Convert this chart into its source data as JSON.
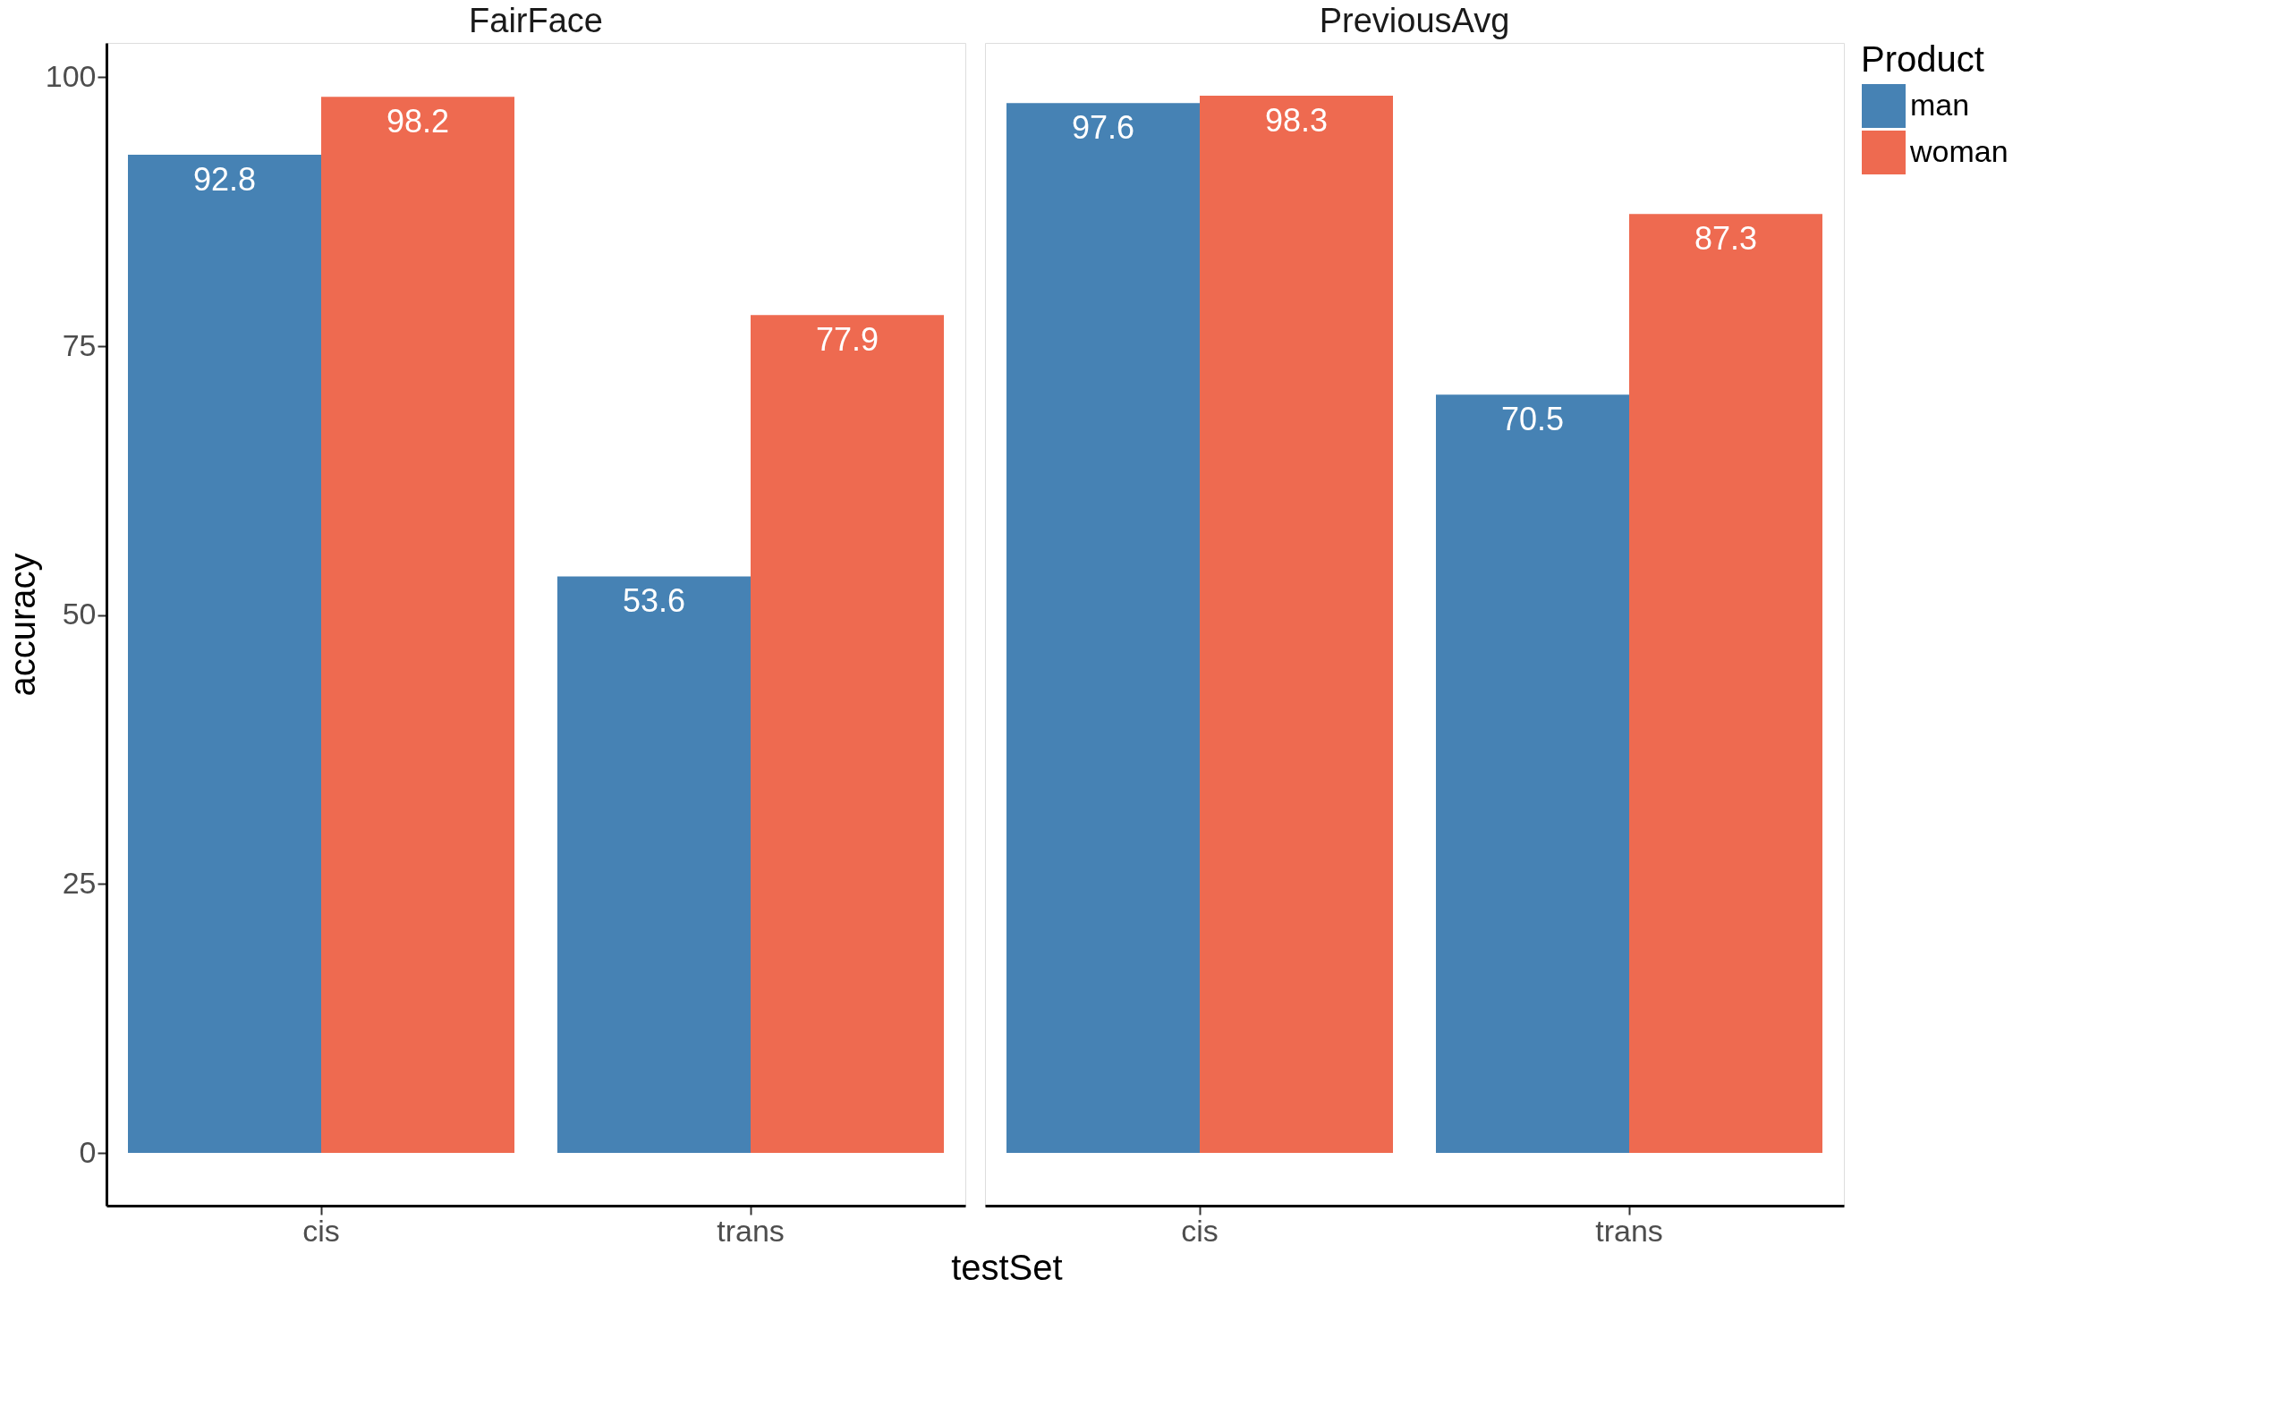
{
  "chart_data": [
    {
      "type": "bar",
      "title": "FairFace",
      "xlabel": "testSet",
      "ylabel": "accuracy",
      "categories": [
        "cis",
        "trans"
      ],
      "series": [
        {
          "name": "man",
          "color": "#4682b4",
          "values": [
            92.8,
            53.6
          ]
        },
        {
          "name": "woman",
          "color": "#ee6a50",
          "values": [
            98.2,
            77.9
          ]
        }
      ],
      "ylim": [
        -4.9,
        103.2
      ],
      "yticks": [
        0,
        25,
        50,
        75,
        100
      ],
      "data_labels": true,
      "grid": false,
      "legend": "right"
    },
    {
      "type": "bar",
      "title": "PreviousAvg",
      "categories": [
        "cis",
        "trans"
      ],
      "series": [
        {
          "name": "man",
          "color": "#4682b4",
          "values": [
            97.6,
            70.5
          ]
        },
        {
          "name": "woman",
          "color": "#ee6a50",
          "values": [
            98.3,
            87.3
          ]
        }
      ],
      "ylim": [
        -4.9,
        103.2
      ],
      "yticks": [
        0,
        25,
        50,
        75,
        100
      ],
      "data_labels": true,
      "grid": false,
      "tick_labels": "x",
      "legend": "right",
      "legend_title": "Product"
    }
  ]
}
